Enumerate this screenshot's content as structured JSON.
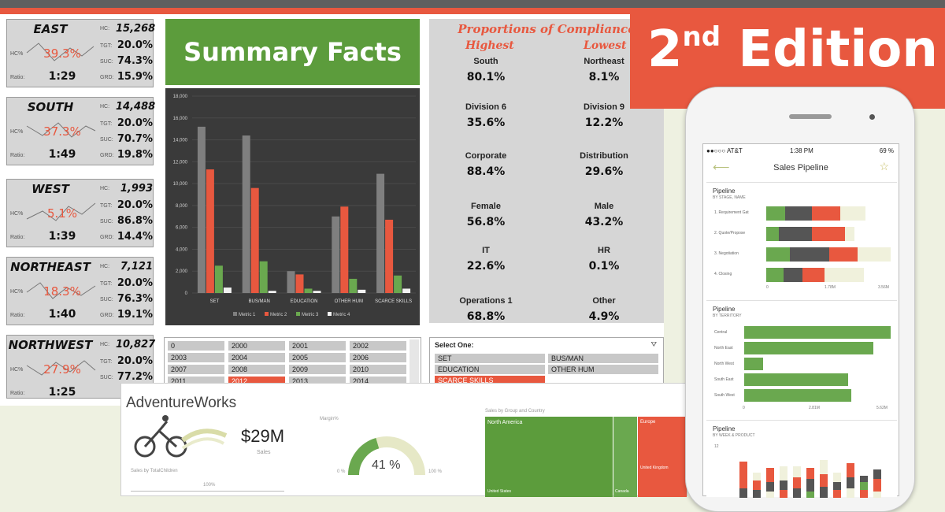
{
  "regions": [
    {
      "name": "EAST",
      "hc_pct": "39.3%",
      "ratio": "1:29",
      "hc": "15,268",
      "tgt": "20.0%",
      "suc": "74.3%",
      "grd": "15.9%"
    },
    {
      "name": "SOUTH",
      "hc_pct": "37.3%",
      "ratio": "1:49",
      "hc": "14,488",
      "tgt": "20.0%",
      "suc": "70.7%",
      "grd": "19.8%"
    },
    {
      "name": "WEST",
      "hc_pct": "5.1%",
      "ratio": "1:39",
      "hc": "1,993",
      "tgt": "20.0%",
      "suc": "86.8%",
      "grd": "14.4%"
    },
    {
      "name": "NORTHEAST",
      "hc_pct": "18.3%",
      "ratio": "1:40",
      "hc": "7,121",
      "tgt": "20.0%",
      "suc": "76.3%",
      "grd": "19.1%"
    },
    {
      "name": "NORTHWEST",
      "hc_pct": "27.9%",
      "ratio": "1:25",
      "hc": "10,827",
      "tgt": "20.0%",
      "suc": "77.2%",
      "grd": ""
    }
  ],
  "region_labels": {
    "hc": "HC:",
    "tgt": "TGT:",
    "suc": "SUC:",
    "grd": "GRD:",
    "hcpct": "HC%",
    "ratio": "Ratio:"
  },
  "summary_title": "Summary Facts",
  "chart_data": {
    "type": "bar",
    "categories": [
      "SET",
      "BUS/MAN",
      "EDUCATION",
      "OTHER HUM",
      "SCARCE SKILLS"
    ],
    "series": [
      {
        "name": "Metric 1",
        "values": [
          15200,
          14400,
          2000,
          7000,
          10900
        ]
      },
      {
        "name": "Metric 2",
        "values": [
          11300,
          9600,
          1700,
          7900,
          6700
        ]
      },
      {
        "name": "Metric 3",
        "values": [
          2500,
          2900,
          400,
          1300,
          1600
        ]
      },
      {
        "name": "Metric 4",
        "values": [
          500,
          200,
          200,
          300,
          400
        ]
      }
    ],
    "colors": [
      "#7f7f7f",
      "#e8583f",
      "#6aa84f",
      "#f2f2f2"
    ],
    "yticks": [
      "0",
      "2,000",
      "4,000",
      "6,000",
      "8,000",
      "10,000",
      "12,000",
      "14,000",
      "16,000",
      "18,000"
    ],
    "ylim": [
      0,
      18000
    ]
  },
  "proportions": {
    "title": "Proportions of Compliance",
    "highest_label": "Highest",
    "lowest_label": "Lowest",
    "rows": [
      {
        "high_label": "South",
        "high_pct": "80.1%",
        "low_label": "Northeast",
        "low_pct": "8.1%"
      },
      {
        "high_label": "Division 6",
        "high_pct": "35.6%",
        "low_label": "Division 9",
        "low_pct": "12.2%"
      },
      {
        "high_label": "Corporate",
        "high_pct": "88.4%",
        "low_label": "Distribution",
        "low_pct": "29.6%"
      },
      {
        "high_label": "Female",
        "high_pct": "56.8%",
        "low_label": "Male",
        "low_pct": "43.2%"
      },
      {
        "high_label": "IT",
        "high_pct": "22.6%",
        "low_label": "HR",
        "low_pct": "0.1%"
      },
      {
        "high_label": "Operations 1",
        "high_pct": "68.8%",
        "low_label": "Other",
        "low_pct": "4.9%"
      }
    ]
  },
  "years": [
    "0",
    "2000",
    "2001",
    "2002",
    "2003",
    "2004",
    "2005",
    "2006",
    "2007",
    "2008",
    "2009",
    "2010",
    "2011",
    "2012",
    "2013",
    "2014"
  ],
  "selected_year": "2012",
  "select_one": {
    "label": "Select One:",
    "options": [
      "SET",
      "BUS/MAN",
      "EDUCATION",
      "OTHER HUM",
      "SCARCE SKILLS"
    ],
    "selected": "SCARCE SKILLS"
  },
  "edition": {
    "number": "2",
    "suffix": "nd",
    "word": "Edition"
  },
  "adventureworks": {
    "title": "AdventureWorks",
    "sales_value": "$29M",
    "sales_label": "Sales",
    "margin_label": "Margin%",
    "margin_value": "41 %",
    "margin_fraction": 0.41,
    "gauge_min": "0 %",
    "gauge_max": "100 %",
    "sales_by_label": "Sales by TotalChildren",
    "percent_label": "100%",
    "treemap_label": "Sales by Group and Country",
    "treemap": [
      "North America",
      "Europe",
      "United Kingdom",
      "United States",
      "Canada"
    ]
  },
  "phone": {
    "carrier": "●●○○○ AT&T",
    "time": "1:38 PM",
    "battery": "69 %",
    "nav_title": "Sales Pipeline",
    "panel1": {
      "title": "Pipeline",
      "subtitle": "BY STAGE, NAME",
      "rows": [
        "1. Requirement Gat",
        "2. Quote/Propose",
        "3. Negotiation",
        "4. Closing"
      ],
      "axis": [
        "0",
        "1.78M",
        "3.56M"
      ]
    },
    "panel2": {
      "title": "Pipeline",
      "subtitle": "BY TERRITORY",
      "rows": [
        {
          "label": "Central",
          "value": 1.0
        },
        {
          "label": "North East",
          "value": 0.88
        },
        {
          "label": "North West",
          "value": 0.13
        },
        {
          "label": "South East",
          "value": 0.71
        },
        {
          "label": "South West",
          "value": 0.73
        }
      ],
      "axis": [
        "0",
        "2.81M",
        "5.62M"
      ]
    },
    "panel3": {
      "title": "Pipeline",
      "subtitle": "BY WEEK & PRODUCT",
      "ytick": "12"
    }
  }
}
